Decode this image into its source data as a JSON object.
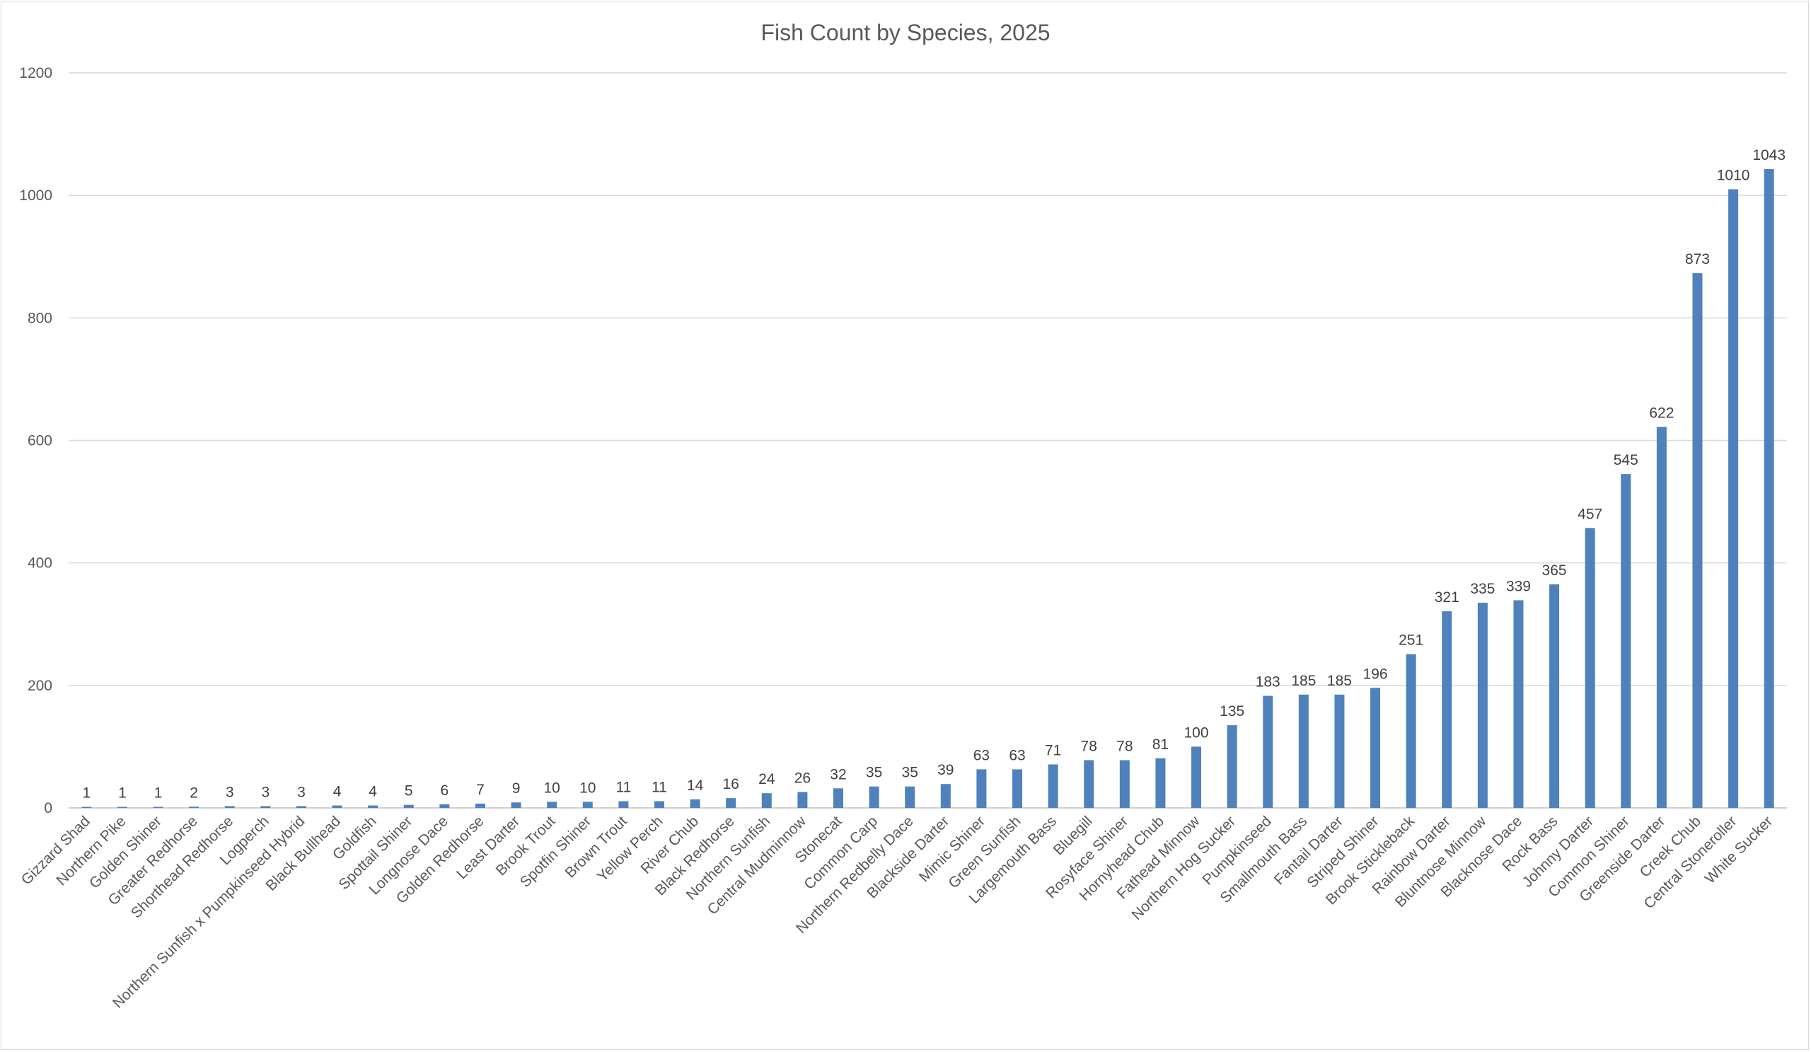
{
  "chart_data": {
    "type": "bar",
    "title": "Fish Count by Species, 2025",
    "xlabel": "",
    "ylabel": "",
    "ylim": [
      0,
      1200
    ],
    "yticks": [
      0,
      200,
      400,
      600,
      800,
      1000,
      1200
    ],
    "grid": true,
    "legend": "none",
    "bar_color": "#4f81bd",
    "categories": [
      "Gizzard Shad",
      "Northern Pike",
      "Golden Shiner",
      "Greater Redhorse",
      "Shorthead Redhorse",
      "Logperch",
      "Northern Sunfish x Pumpkinseed Hybrid",
      "Black Bullhead",
      "Goldfish",
      "Spottail Shiner",
      "Longnose Dace",
      "Golden Redhorse",
      "Least Darter",
      "Brook Trout",
      "Spotfin Shiner",
      "Brown Trout",
      "Yellow Perch",
      "River Chub",
      "Black Redhorse",
      "Northern Sunfish",
      "Central Mudminnow",
      "Stonecat",
      "Common Carp",
      "Northern Redbelly Dace",
      "Blackside Darter",
      "Mimic Shiner",
      "Green Sunfish",
      "Largemouth Bass",
      "Bluegill",
      "Rosyface Shiner",
      "Hornyhead Chub",
      "Fathead Minnow",
      "Northern Hog Sucker",
      "Pumpkinseed",
      "Smallmouth Bass",
      "Fantail Darter",
      "Striped Shiner",
      "Brook Stickleback",
      "Rainbow Darter",
      "Bluntnose Minnow",
      "Blacknose Dace",
      "Rock Bass",
      "Johnny Darter",
      "Common Shiner",
      "Greenside Darter",
      "Creek Chub",
      "Central Stoneroller",
      "White Sucker"
    ],
    "values": [
      1,
      1,
      1,
      2,
      3,
      3,
      3,
      4,
      4,
      5,
      6,
      7,
      9,
      10,
      10,
      11,
      11,
      14,
      16,
      24,
      26,
      32,
      35,
      35,
      39,
      63,
      63,
      71,
      78,
      78,
      81,
      100,
      135,
      183,
      185,
      185,
      196,
      251,
      321,
      335,
      339,
      365,
      457,
      545,
      622,
      873,
      1010,
      1043
    ]
  }
}
